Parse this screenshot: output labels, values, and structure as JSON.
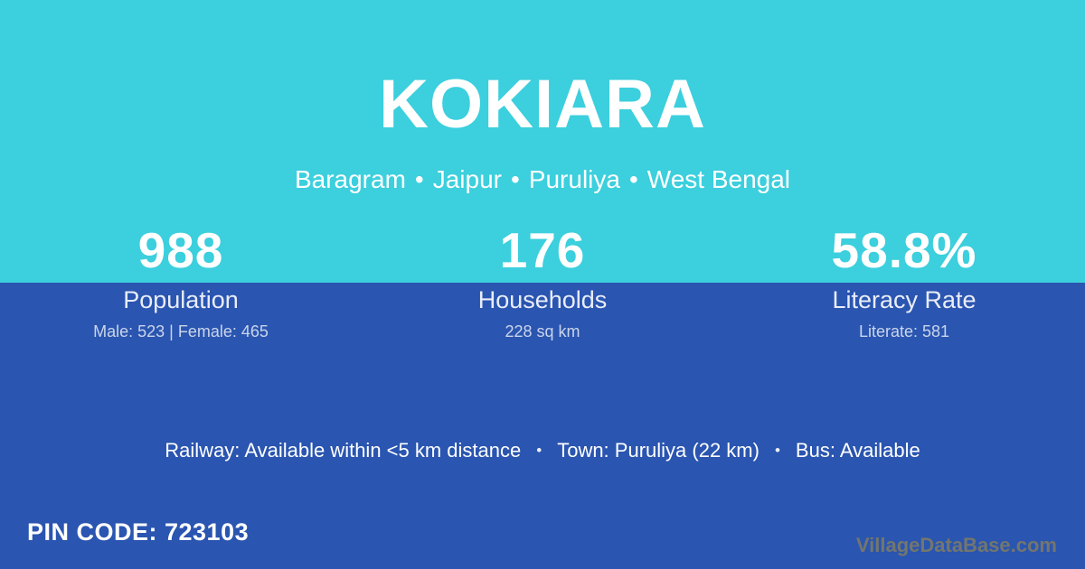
{
  "header": {
    "title": "KOKIARA",
    "location": {
      "block": "Baragram",
      "area": "Jaipur",
      "district": "Puruliya",
      "state": "West Bengal",
      "separator": "•"
    }
  },
  "stats": [
    {
      "value": "988",
      "label": "Population",
      "detail": "Male: 523 | Female: 465"
    },
    {
      "value": "176",
      "label": "Households",
      "detail": "228 sq km"
    },
    {
      "value": "58.8%",
      "label": "Literacy Rate",
      "detail": "Literate: 581"
    }
  ],
  "facts": {
    "railway": "Railway: Available within <5 km distance",
    "town": "Town: Puruliya (22 km)",
    "bus": "Bus: Available",
    "separator": "•"
  },
  "footer": {
    "pin_code": "PIN CODE: 723103",
    "watermark": "VillageDataBase.com"
  },
  "colors": {
    "top_background": "#3CCFDD",
    "bottom_background": "#2A55B0",
    "text_primary": "#FFFFFF",
    "watermark_text": "#73766E"
  }
}
